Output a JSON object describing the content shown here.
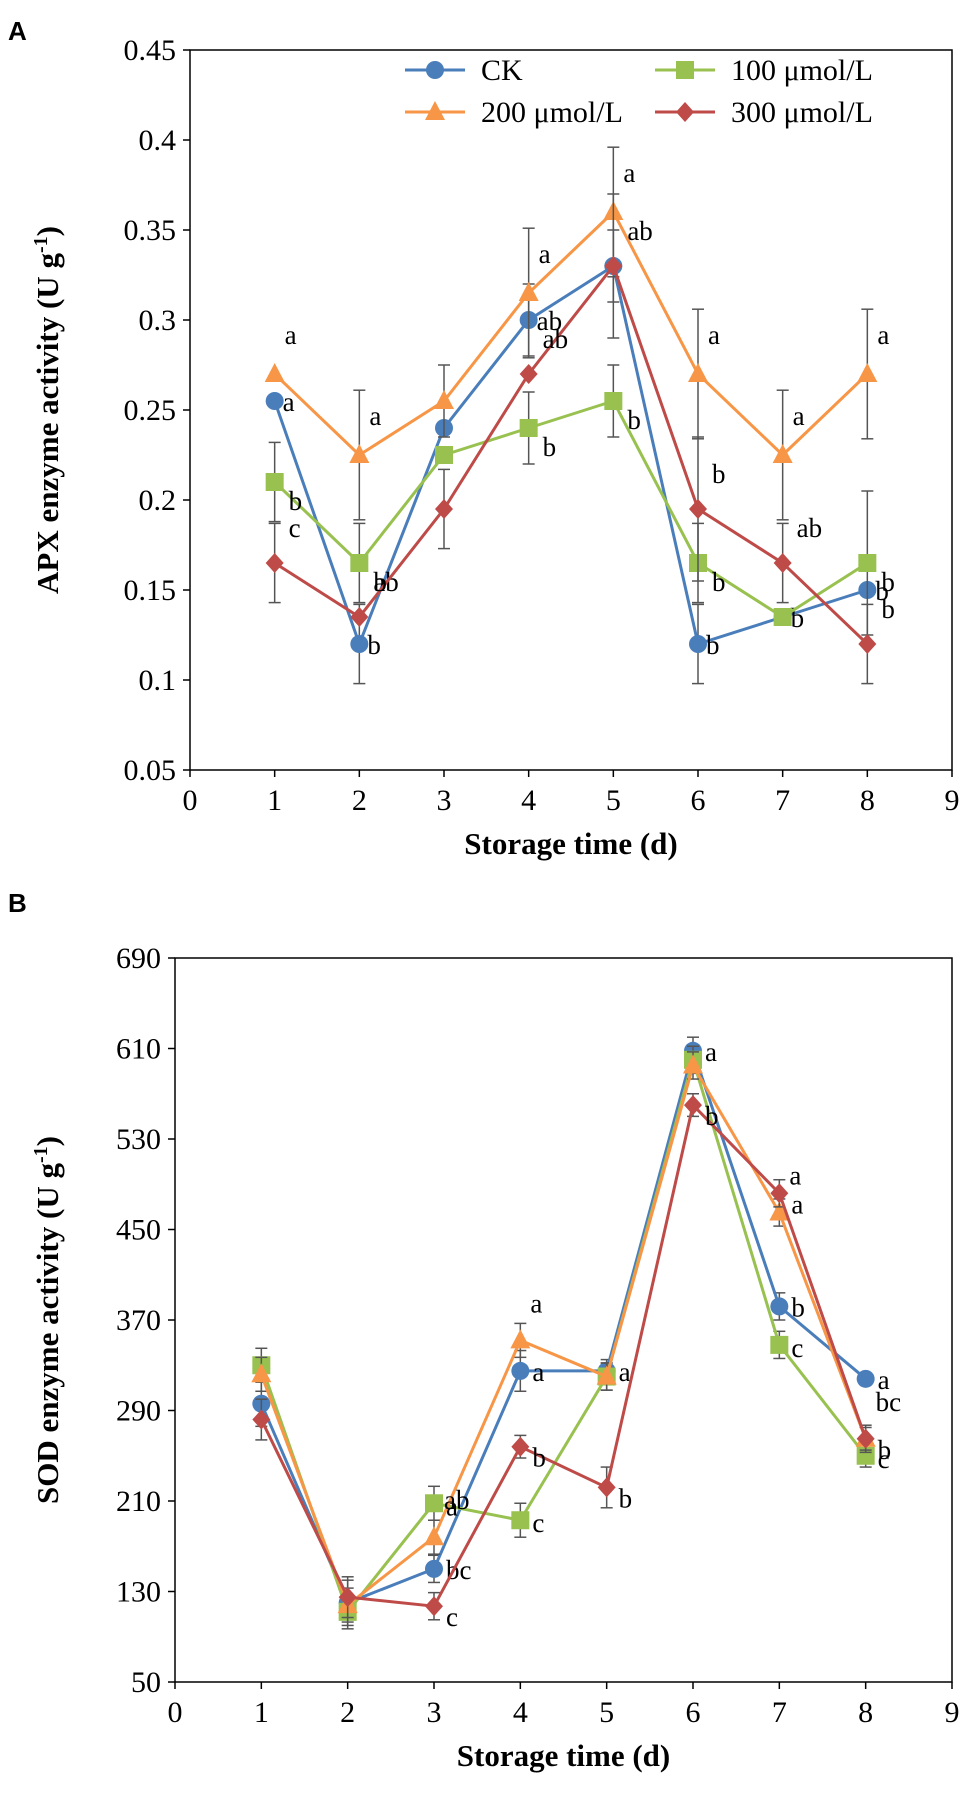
{
  "chart_data": [
    {
      "panel": "A",
      "type": "line",
      "xlabel": "Storage time (d)",
      "ylabel": {
        "main": "APX enzyme activity (U g",
        "sup": "-1",
        "close": ")"
      },
      "xlim": [
        0,
        9
      ],
      "ylim": [
        0.05,
        0.45
      ],
      "xticks": [
        0,
        1,
        2,
        3,
        4,
        5,
        6,
        7,
        8,
        9
      ],
      "yticks": [
        0.05,
        0.1,
        0.15,
        0.2,
        0.25,
        0.3,
        0.35,
        0.4,
        0.45
      ],
      "ytick_labels": [
        "0.05",
        "0.1",
        "0.15",
        "0.2",
        "0.25",
        "0.3",
        "0.35",
        "0.4",
        "0.45"
      ],
      "x": [
        1,
        2,
        3,
        4,
        5,
        6,
        7,
        8
      ],
      "legend_position": "top",
      "series": [
        {
          "name": "CK",
          "color": "#4A7EBB",
          "marker": "circle",
          "values": [
            0.255,
            0.12,
            0.24,
            0.3,
            0.33,
            0.12,
            0.135,
            0.15
          ],
          "errors": [
            0.0,
            0.022,
            0.0,
            0.02,
            0.02,
            0.022,
            0.0,
            0.0
          ],
          "labels": [
            "a",
            "b",
            "",
            "ab",
            "",
            "b",
            "b",
            "b"
          ]
        },
        {
          "name": "100 μmol/L",
          "color": "#98C150",
          "marker": "square",
          "values": [
            0.21,
            0.165,
            0.225,
            0.24,
            0.255,
            0.165,
            0.135,
            0.165
          ],
          "errors": [
            0.022,
            0.022,
            0.0,
            0.02,
            0.02,
            0.022,
            0.0,
            0.04
          ],
          "labels": [
            "b",
            "ab",
            "",
            "b",
            "b",
            "b",
            "",
            "b"
          ]
        },
        {
          "name": "200 μmol/L",
          "color": "#F79646",
          "marker": "triangle",
          "values": [
            0.27,
            0.225,
            0.255,
            0.315,
            0.36,
            0.27,
            0.225,
            0.27
          ],
          "errors": [
            0.0,
            0.036,
            0.02,
            0.036,
            0.036,
            0.036,
            0.036,
            0.036
          ],
          "labels": [
            "a",
            "a",
            "",
            "a",
            "a",
            "a",
            "a",
            "a"
          ]
        },
        {
          "name": "300 μmol/L",
          "color": "#BE4B48",
          "marker": "diamond",
          "values": [
            0.165,
            0.135,
            0.195,
            0.27,
            0.33,
            0.195,
            0.165,
            0.12
          ],
          "errors": [
            0.022,
            0.0,
            0.022,
            0.0,
            0.04,
            0.04,
            0.022,
            0.022
          ],
          "labels": [
            "c",
            "b",
            "",
            "ab",
            "ab",
            "b",
            "ab",
            "b"
          ]
        }
      ]
    },
    {
      "panel": "B",
      "type": "line",
      "xlabel": "Storage time (d)",
      "ylabel": {
        "main": "SOD enzyme activity (U g",
        "sup": "-1",
        "close": ")"
      },
      "xlim": [
        0,
        9
      ],
      "ylim": [
        50,
        690
      ],
      "xticks": [
        0,
        1,
        2,
        3,
        4,
        5,
        6,
        7,
        8,
        9
      ],
      "yticks": [
        50,
        130,
        210,
        290,
        370,
        450,
        530,
        610,
        690
      ],
      "ytick_labels": [
        "50",
        "130",
        "210",
        "290",
        "370",
        "450",
        "530",
        "610",
        "690"
      ],
      "x": [
        1,
        2,
        3,
        4,
        5,
        6,
        7,
        8
      ],
      "series": [
        {
          "name": "CK",
          "color": "#4A7EBB",
          "marker": "circle",
          "values": [
            296,
            120,
            150,
            325,
            325,
            608,
            382,
            318
          ],
          "errors": [
            20,
            20,
            12,
            18,
            10,
            12,
            12,
            0
          ],
          "labels": [
            "",
            "",
            "bc",
            "a",
            "a",
            "a",
            "b",
            "a"
          ]
        },
        {
          "name": "100 μmol/L",
          "color": "#98C150",
          "marker": "square",
          "values": [
            330,
            112,
            208,
            193,
            320,
            600,
            348,
            250
          ],
          "errors": [
            15,
            15,
            15,
            15,
            12,
            12,
            12,
            10
          ],
          "labels": [
            "",
            "",
            "a",
            "c",
            "",
            "",
            "c",
            "c"
          ]
        },
        {
          "name": "200 μmol/L",
          "color": "#F79646",
          "marker": "triangle",
          "values": [
            322,
            118,
            178,
            352,
            320,
            595,
            465,
            265
          ],
          "errors": [
            15,
            15,
            15,
            15,
            12,
            12,
            12,
            12
          ],
          "labels": [
            "",
            "",
            "ab",
            "a",
            "",
            "",
            "a",
            "bc"
          ]
        },
        {
          "name": "300 μmol/L",
          "color": "#BE4B48",
          "marker": "diamond",
          "values": [
            282,
            125,
            117,
            258,
            222,
            560,
            482,
            265
          ],
          "errors": [
            18,
            18,
            12,
            10,
            18,
            10,
            12,
            10
          ],
          "labels": [
            "",
            "",
            "c",
            "b",
            "b",
            "b",
            "a",
            "b"
          ]
        }
      ]
    }
  ]
}
